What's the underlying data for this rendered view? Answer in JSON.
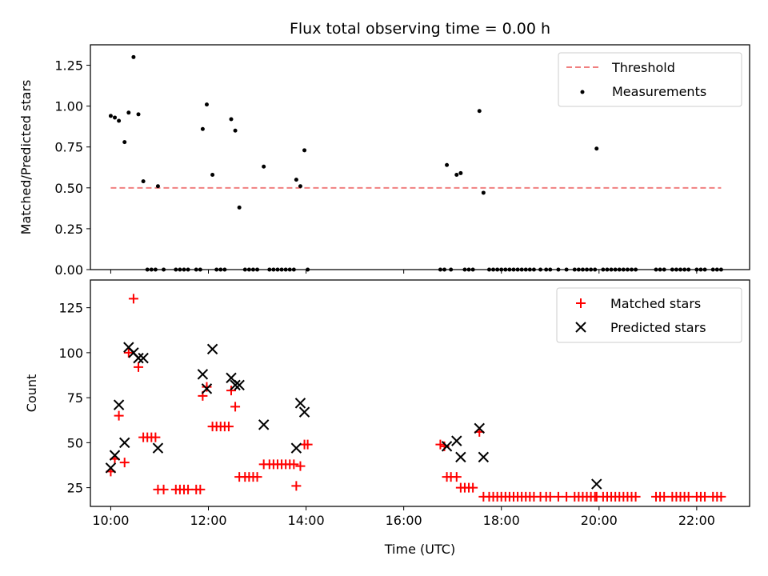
{
  "chart_data": [
    {
      "type": "scatter",
      "title": "Flux total observing time = 0.00 h",
      "xlabel": "",
      "ylabel": "Matched/Predicted stars",
      "xlim": [
        "09:35",
        "23:05"
      ],
      "ylim": [
        0,
        1.375
      ],
      "yticks": [
        "0.00",
        "0.25",
        "0.50",
        "0.75",
        "1.00",
        "1.25"
      ],
      "ytick_values": [
        0,
        0.25,
        0.5,
        0.75,
        1.0,
        1.25
      ],
      "grid": false,
      "legend_position": "upper right",
      "threshold": {
        "name": "Threshold",
        "color": "#f08080",
        "style": "dashed",
        "x": [
          "10:00",
          "22:30"
        ],
        "y": 0.5
      },
      "series": [
        {
          "name": "Measurements",
          "color": "#000000",
          "marker": "dot",
          "points": [
            [
              "10:00",
              0.94
            ],
            [
              "10:05",
              0.93
            ],
            [
              "10:10",
              0.91
            ],
            [
              "10:17",
              0.78
            ],
            [
              "10:22",
              0.96
            ],
            [
              "10:28",
              1.3
            ],
            [
              "10:34",
              0.95
            ],
            [
              "10:40",
              0.54
            ],
            [
              "10:45",
              0.0
            ],
            [
              "10:50",
              0.0
            ],
            [
              "10:55",
              0.0
            ],
            [
              "10:58",
              0.51
            ],
            [
              "11:05",
              0.0
            ],
            [
              "11:20",
              0.0
            ],
            [
              "11:25",
              0.0
            ],
            [
              "11:30",
              0.0
            ],
            [
              "11:35",
              0.0
            ],
            [
              "11:45",
              0.0
            ],
            [
              "11:50",
              0.0
            ],
            [
              "11:53",
              0.86
            ],
            [
              "11:58",
              1.01
            ],
            [
              "12:05",
              0.58
            ],
            [
              "12:10",
              0.0
            ],
            [
              "12:15",
              0.0
            ],
            [
              "12:20",
              0.0
            ],
            [
              "12:28",
              0.92
            ],
            [
              "12:33",
              0.85
            ],
            [
              "12:38",
              0.38
            ],
            [
              "12:45",
              0.0
            ],
            [
              "12:50",
              0.0
            ],
            [
              "12:55",
              0.0
            ],
            [
              "13:00",
              0.0
            ],
            [
              "13:08",
              0.63
            ],
            [
              "13:15",
              0.0
            ],
            [
              "13:20",
              0.0
            ],
            [
              "13:25",
              0.0
            ],
            [
              "13:30",
              0.0
            ],
            [
              "13:35",
              0.0
            ],
            [
              "13:40",
              0.0
            ],
            [
              "13:45",
              0.0
            ],
            [
              "13:48",
              0.55
            ],
            [
              "13:53",
              0.51
            ],
            [
              "13:58",
              0.73
            ],
            [
              "14:02",
              0.0
            ],
            [
              "16:45",
              0.0
            ],
            [
              "16:50",
              0.0
            ],
            [
              "16:53",
              0.64
            ],
            [
              "16:58",
              0.0
            ],
            [
              "17:05",
              0.58
            ],
            [
              "17:10",
              0.59
            ],
            [
              "17:15",
              0.0
            ],
            [
              "17:20",
              0.0
            ],
            [
              "17:25",
              0.0
            ],
            [
              "17:33",
              0.97
            ],
            [
              "17:38",
              0.47
            ],
            [
              "17:45",
              0.0
            ],
            [
              "17:50",
              0.0
            ],
            [
              "17:55",
              0.0
            ],
            [
              "18:00",
              0.0
            ],
            [
              "18:05",
              0.0
            ],
            [
              "18:10",
              0.0
            ],
            [
              "18:15",
              0.0
            ],
            [
              "18:20",
              0.0
            ],
            [
              "18:25",
              0.0
            ],
            [
              "18:30",
              0.0
            ],
            [
              "18:35",
              0.0
            ],
            [
              "18:40",
              0.0
            ],
            [
              "18:48",
              0.0
            ],
            [
              "18:55",
              0.0
            ],
            [
              "19:00",
              0.0
            ],
            [
              "19:10",
              0.0
            ],
            [
              "19:20",
              0.0
            ],
            [
              "19:30",
              0.0
            ],
            [
              "19:35",
              0.0
            ],
            [
              "19:40",
              0.0
            ],
            [
              "19:45",
              0.0
            ],
            [
              "19:50",
              0.0
            ],
            [
              "19:55",
              0.0
            ],
            [
              "19:57",
              0.74
            ],
            [
              "20:05",
              0.0
            ],
            [
              "20:10",
              0.0
            ],
            [
              "20:15",
              0.0
            ],
            [
              "20:20",
              0.0
            ],
            [
              "20:25",
              0.0
            ],
            [
              "20:30",
              0.0
            ],
            [
              "20:35",
              0.0
            ],
            [
              "20:40",
              0.0
            ],
            [
              "20:45",
              0.0
            ],
            [
              "21:10",
              0.0
            ],
            [
              "21:15",
              0.0
            ],
            [
              "21:20",
              0.0
            ],
            [
              "21:30",
              0.0
            ],
            [
              "21:35",
              0.0
            ],
            [
              "21:40",
              0.0
            ],
            [
              "21:45",
              0.0
            ],
            [
              "21:50",
              0.0
            ],
            [
              "22:00",
              0.0
            ],
            [
              "22:05",
              0.0
            ],
            [
              "22:10",
              0.0
            ],
            [
              "22:20",
              0.0
            ],
            [
              "22:25",
              0.0
            ],
            [
              "22:30",
              0.0
            ]
          ]
        }
      ]
    },
    {
      "type": "scatter",
      "title": "",
      "xlabel": "Time (UTC)",
      "ylabel": "Count",
      "xlim": [
        "09:35",
        "23:05"
      ],
      "ylim": [
        14.6,
        140.4
      ],
      "xticks": [
        "10:00",
        "12:00",
        "14:00",
        "16:00",
        "18:00",
        "20:00",
        "22:00"
      ],
      "yticks": [
        "25",
        "50",
        "75",
        "100",
        "125"
      ],
      "ytick_values": [
        25,
        50,
        75,
        100,
        125
      ],
      "grid": false,
      "legend_position": "upper right",
      "series": [
        {
          "name": "Matched stars",
          "color": "#ff0000",
          "marker": "plus",
          "points": [
            [
              "10:00",
              34
            ],
            [
              "10:05",
              41
            ],
            [
              "10:10",
              65
            ],
            [
              "10:17",
              39
            ],
            [
              "10:22",
              100
            ],
            [
              "10:28",
              130
            ],
            [
              "10:34",
              92
            ],
            [
              "10:40",
              53
            ],
            [
              "10:45",
              53
            ],
            [
              "10:50",
              53
            ],
            [
              "10:55",
              53
            ],
            [
              "10:58",
              24
            ],
            [
              "11:05",
              24
            ],
            [
              "11:20",
              24
            ],
            [
              "11:25",
              24
            ],
            [
              "11:30",
              24
            ],
            [
              "11:35",
              24
            ],
            [
              "11:45",
              24
            ],
            [
              "11:50",
              24
            ],
            [
              "11:53",
              76
            ],
            [
              "11:58",
              81
            ],
            [
              "12:05",
              59
            ],
            [
              "12:10",
              59
            ],
            [
              "12:15",
              59
            ],
            [
              "12:20",
              59
            ],
            [
              "12:25",
              59
            ],
            [
              "12:28",
              79
            ],
            [
              "12:33",
              70
            ],
            [
              "12:38",
              31
            ],
            [
              "12:45",
              31
            ],
            [
              "12:50",
              31
            ],
            [
              "12:55",
              31
            ],
            [
              "13:00",
              31
            ],
            [
              "13:08",
              38
            ],
            [
              "13:15",
              38
            ],
            [
              "13:20",
              38
            ],
            [
              "13:25",
              38
            ],
            [
              "13:30",
              38
            ],
            [
              "13:35",
              38
            ],
            [
              "13:40",
              38
            ],
            [
              "13:45",
              38
            ],
            [
              "13:48",
              26
            ],
            [
              "13:53",
              37
            ],
            [
              "13:58",
              49
            ],
            [
              "14:02",
              49
            ],
            [
              "16:45",
              49
            ],
            [
              "16:50",
              48
            ],
            [
              "16:53",
              31
            ],
            [
              "16:58",
              31
            ],
            [
              "17:05",
              31
            ],
            [
              "17:10",
              25
            ],
            [
              "17:15",
              25
            ],
            [
              "17:20",
              25
            ],
            [
              "17:25",
              25
            ],
            [
              "17:33",
              56
            ],
            [
              "17:38",
              20
            ],
            [
              "17:45",
              20
            ],
            [
              "17:50",
              20
            ],
            [
              "17:55",
              20
            ],
            [
              "18:00",
              20
            ],
            [
              "18:05",
              20
            ],
            [
              "18:10",
              20
            ],
            [
              "18:15",
              20
            ],
            [
              "18:20",
              20
            ],
            [
              "18:25",
              20
            ],
            [
              "18:30",
              20
            ],
            [
              "18:35",
              20
            ],
            [
              "18:40",
              20
            ],
            [
              "18:48",
              20
            ],
            [
              "18:55",
              20
            ],
            [
              "19:00",
              20
            ],
            [
              "19:10",
              20
            ],
            [
              "19:20",
              20
            ],
            [
              "19:30",
              20
            ],
            [
              "19:35",
              20
            ],
            [
              "19:40",
              20
            ],
            [
              "19:45",
              20
            ],
            [
              "19:50",
              20
            ],
            [
              "19:55",
              20
            ],
            [
              "19:57",
              20
            ],
            [
              "20:05",
              20
            ],
            [
              "20:10",
              20
            ],
            [
              "20:15",
              20
            ],
            [
              "20:20",
              20
            ],
            [
              "20:25",
              20
            ],
            [
              "20:30",
              20
            ],
            [
              "20:35",
              20
            ],
            [
              "20:40",
              20
            ],
            [
              "20:45",
              20
            ],
            [
              "21:10",
              20
            ],
            [
              "21:15",
              20
            ],
            [
              "21:20",
              20
            ],
            [
              "21:30",
              20
            ],
            [
              "21:35",
              20
            ],
            [
              "21:40",
              20
            ],
            [
              "21:45",
              20
            ],
            [
              "21:50",
              20
            ],
            [
              "22:00",
              20
            ],
            [
              "22:05",
              20
            ],
            [
              "22:10",
              20
            ],
            [
              "22:20",
              20
            ],
            [
              "22:25",
              20
            ],
            [
              "22:30",
              20
            ]
          ]
        },
        {
          "name": "Predicted stars",
          "color": "#000000",
          "marker": "x",
          "points": [
            [
              "10:00",
              36
            ],
            [
              "10:05",
              43
            ],
            [
              "10:10",
              71
            ],
            [
              "10:17",
              50
            ],
            [
              "10:22",
              103
            ],
            [
              "10:28",
              100
            ],
            [
              "10:34",
              97
            ],
            [
              "10:40",
              97
            ],
            [
              "10:58",
              47
            ],
            [
              "11:53",
              88
            ],
            [
              "11:58",
              80
            ],
            [
              "12:05",
              102
            ],
            [
              "12:28",
              86
            ],
            [
              "12:33",
              82
            ],
            [
              "12:38",
              82
            ],
            [
              "13:08",
              60
            ],
            [
              "13:48",
              47
            ],
            [
              "13:53",
              72
            ],
            [
              "13:58",
              67
            ],
            [
              "16:53",
              48
            ],
            [
              "17:05",
              51
            ],
            [
              "17:10",
              42
            ],
            [
              "17:33",
              58
            ],
            [
              "17:38",
              42
            ],
            [
              "19:57",
              27
            ]
          ]
        }
      ]
    }
  ]
}
